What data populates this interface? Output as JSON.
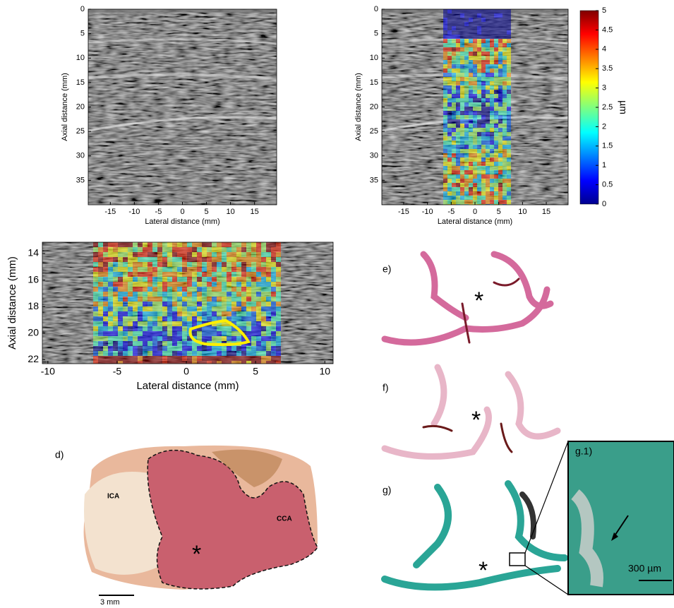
{
  "panel_a": {
    "xlabel": "Lateral distance (mm)",
    "ylabel": "Axial distance (mm)",
    "xlim": [
      -19.6,
      19.6
    ],
    "ylim": [
      0,
      40
    ],
    "xticks": [
      -15,
      -10,
      -5,
      0,
      5,
      10,
      15
    ],
    "yticks": [
      0,
      5,
      10,
      15,
      20,
      25,
      30,
      35
    ]
  },
  "panel_b": {
    "xlabel": "Lateral distance (mm)",
    "ylabel": "Axial distance (mm)",
    "xlim": [
      -19.6,
      19.6
    ],
    "ylim": [
      0,
      40
    ],
    "xticks": [
      -15,
      -10,
      -5,
      0,
      5,
      10,
      15
    ],
    "yticks": [
      0,
      5,
      10,
      15,
      20,
      25,
      30,
      35
    ],
    "colorbar": {
      "label": "µm",
      "lim": [
        0,
        5
      ],
      "ticks": [
        0,
        0.5,
        1,
        1.5,
        2,
        2.5,
        3,
        3.5,
        4,
        4.5,
        5
      ]
    }
  },
  "panel_c": {
    "xlabel": "Lateral distance (mm)",
    "ylabel": "Axial distance (mm)",
    "xlim": [
      -10.4,
      10.6
    ],
    "ylim": [
      13.15,
      22.3
    ],
    "xticks": [
      -10,
      -5,
      0,
      5,
      10
    ],
    "yticks": [
      14,
      16,
      18,
      20,
      22
    ]
  },
  "panel_d": {
    "label": "d)",
    "ica": "ICA",
    "cca": "CCA",
    "marker": "*",
    "scale_bar": "3 mm"
  },
  "histology": {
    "labels": [
      "e)",
      "f)",
      "g)"
    ],
    "marker": "*",
    "inset": {
      "label": "g.1)",
      "scale_bar": "300 µm"
    }
  }
}
